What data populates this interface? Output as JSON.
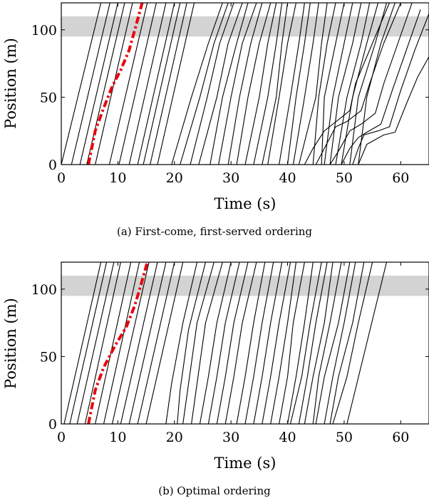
{
  "chart_data": [
    {
      "type": "line",
      "caption": "(a) First-come, first-served ordering",
      "xlabel": "Time (s)",
      "ylabel": "Position (m)",
      "xlim": [
        0,
        65
      ],
      "ylim": [
        0,
        120
      ],
      "xticks": [
        0,
        10,
        20,
        30,
        40,
        50,
        60
      ],
      "yticks": [
        0,
        50,
        100
      ],
      "band": [
        95,
        110
      ],
      "band_color": "#d3d3d3",
      "line_color": "#000000",
      "highlight_color": "#e8000b",
      "highlight": {
        "x": [
          4.8,
          6.0,
          7.5,
          9.0,
          10.5,
          12.0,
          13.0,
          14.3
        ],
        "y": [
          0,
          25,
          42,
          58,
          70,
          85,
          100,
          120
        ]
      },
      "series": [
        {
          "x": [
            0,
            7.0
          ],
          "y": [
            0,
            120
          ]
        },
        {
          "x": [
            1.8,
            8.6
          ],
          "y": [
            0,
            120
          ]
        },
        {
          "x": [
            3.3,
            10.0
          ],
          "y": [
            0,
            120
          ]
        },
        {
          "x": [
            4.5,
            11.2
          ],
          "y": [
            0,
            120
          ]
        },
        {
          "x": [
            6.0,
            12.6
          ],
          "y": [
            0,
            120
          ]
        },
        {
          "x": [
            8.5,
            15.2
          ],
          "y": [
            0,
            120
          ]
        },
        {
          "x": [
            10.2,
            16.8
          ],
          "y": [
            0,
            120
          ]
        },
        {
          "x": [
            12.0,
            18.5
          ],
          "y": [
            0,
            120
          ]
        },
        {
          "x": [
            13.5,
            20.0
          ],
          "y": [
            0,
            120
          ]
        },
        {
          "x": [
            14.5,
            21.0
          ],
          "y": [
            0,
            120
          ]
        },
        {
          "x": [
            15.7,
            22.2
          ],
          "y": [
            0,
            120
          ]
        },
        {
          "x": [
            17.0,
            23.5
          ],
          "y": [
            0,
            120
          ]
        },
        {
          "x": [
            19.5,
            23.0,
            26.0,
            28.5
          ],
          "y": [
            0,
            50,
            90,
            120
          ]
        },
        {
          "x": [
            21.0,
            24.5,
            27.0,
            29.5
          ],
          "y": [
            0,
            50,
            90,
            120
          ]
        },
        {
          "x": [
            22.8,
            25.8,
            28.0,
            30.5
          ],
          "y": [
            0,
            50,
            90,
            120
          ]
        },
        {
          "x": [
            24.3,
            27.5,
            29.5,
            32.0
          ],
          "y": [
            0,
            50,
            90,
            120
          ]
        },
        {
          "x": [
            26.3,
            28.5,
            31.0,
            33.0
          ],
          "y": [
            0,
            50,
            90,
            120
          ]
        },
        {
          "x": [
            27.8,
            30.0,
            32.0,
            34.5
          ],
          "y": [
            0,
            50,
            90,
            120
          ]
        },
        {
          "x": [
            29.5,
            31.5,
            33.5,
            35.5
          ],
          "y": [
            0,
            50,
            90,
            120
          ]
        },
        {
          "x": [
            31.0,
            33.0,
            35.0,
            37.0
          ],
          "y": [
            0,
            50,
            90,
            120
          ]
        },
        {
          "x": [
            32.5,
            35.0,
            36.5,
            38.0
          ],
          "y": [
            0,
            50,
            90,
            120
          ]
        },
        {
          "x": [
            34.0,
            36.5,
            38.0,
            39.0
          ],
          "y": [
            0,
            50,
            90,
            120
          ]
        },
        {
          "x": [
            35.5,
            38.0,
            39.0,
            40.0
          ],
          "y": [
            0,
            50,
            90,
            120
          ]
        },
        {
          "x": [
            36.5,
            38.5,
            40.0,
            41.5
          ],
          "y": [
            0,
            50,
            90,
            120
          ]
        },
        {
          "x": [
            38.5,
            40.5,
            42.0,
            43.0
          ],
          "y": [
            0,
            50,
            90,
            120
          ]
        },
        {
          "x": [
            40.0,
            41.5,
            43.0,
            44.0
          ],
          "y": [
            0,
            50,
            90,
            120
          ]
        },
        {
          "x": [
            41.0,
            43.0,
            44.5,
            45.5
          ],
          "y": [
            0,
            50,
            90,
            120
          ]
        },
        {
          "x": [
            42.0,
            45.0,
            46.0,
            47.0
          ],
          "y": [
            0,
            50,
            90,
            120
          ]
        },
        {
          "x": [
            44.5,
            45.5,
            47.0,
            48.5
          ],
          "y": [
            0,
            50,
            90,
            120
          ]
        },
        {
          "x": [
            46.0,
            46.5,
            48.5,
            50.0
          ],
          "y": [
            0,
            50,
            90,
            120
          ]
        },
        {
          "x": [
            46.5,
            48.0,
            50.0,
            51.5
          ],
          "y": [
            0,
            50,
            90,
            120
          ]
        },
        {
          "x": [
            47.5,
            49.0,
            51.5,
            53.0
          ],
          "y": [
            0,
            50,
            90,
            120
          ]
        },
        {
          "x": [
            48.5,
            50.5,
            53.0,
            54.5
          ],
          "y": [
            0,
            50,
            90,
            120
          ]
        },
        {
          "x": [
            49.5,
            51.5,
            54.0,
            56.0
          ],
          "y": [
            0,
            50,
            90,
            120
          ]
        },
        {
          "x": [
            51.0,
            52.5,
            55.5,
            57.5
          ],
          "y": [
            0,
            50,
            90,
            120
          ]
        },
        {
          "x": [
            52.5,
            54.0,
            56.5,
            59.0
          ],
          "y": [
            0,
            50,
            90,
            120
          ]
        },
        {
          "x": [
            43.0,
            44.5,
            46.5,
            48.0,
            51.0,
            52.0,
            55.0,
            58.0
          ],
          "y": [
            0,
            12,
            25,
            30,
            40,
            60,
            90,
            120
          ]
        },
        {
          "x": [
            45.0,
            46.5,
            48.5,
            50.5,
            53.0,
            54.5,
            57.0,
            60.0
          ],
          "y": [
            0,
            12,
            28,
            32,
            40,
            60,
            90,
            120
          ]
        },
        {
          "x": [
            47.5,
            49.0,
            51.0,
            53.0,
            55.5,
            57.0,
            59.5,
            62.0
          ],
          "y": [
            0,
            10,
            25,
            30,
            38,
            60,
            90,
            120
          ]
        },
        {
          "x": [
            49.5,
            51.0,
            52.5,
            54.0,
            56.5,
            58.5,
            61.0,
            63.5
          ],
          "y": [
            0,
            12,
            20,
            24,
            30,
            55,
            85,
            115
          ]
        },
        {
          "x": [
            51.5,
            52.5,
            53.5,
            56.0,
            58.0,
            60.0,
            62.5,
            65.0
          ],
          "y": [
            0,
            12,
            22,
            25,
            28,
            55,
            85,
            112
          ]
        },
        {
          "x": [
            52.5,
            54.0,
            57.0,
            59.0,
            61.0,
            63.0,
            65.0
          ],
          "y": [
            0,
            15,
            22,
            24,
            45,
            65,
            80
          ]
        }
      ]
    },
    {
      "type": "line",
      "caption": "(b) Optimal ordering",
      "xlabel": "Time (s)",
      "ylabel": "Position (m)",
      "xlim": [
        0,
        65
      ],
      "ylim": [
        0,
        120
      ],
      "xticks": [
        0,
        10,
        20,
        30,
        40,
        50,
        60
      ],
      "yticks": [
        0,
        50,
        100
      ],
      "band": [
        95,
        110
      ],
      "band_color": "#d3d3d3",
      "line_color": "#000000",
      "highlight_color": "#e8000b",
      "highlight": {
        "x": [
          4.8,
          6.0,
          7.5,
          9.5,
          11.5,
          13.0,
          14.0,
          15.2
        ],
        "y": [
          0,
          25,
          42,
          58,
          72,
          88,
          102,
          120
        ]
      },
      "series": [
        {
          "x": [
            0.5,
            7.0
          ],
          "y": [
            0,
            120
          ]
        },
        {
          "x": [
            1.5,
            8.0
          ],
          "y": [
            0,
            120
          ]
        },
        {
          "x": [
            2.8,
            9.3
          ],
          "y": [
            0,
            120
          ]
        },
        {
          "x": [
            4.2,
            10.5
          ],
          "y": [
            0,
            120
          ]
        },
        {
          "x": [
            6.0,
            12.3
          ],
          "y": [
            0,
            120
          ]
        },
        {
          "x": [
            7.5,
            13.8
          ],
          "y": [
            0,
            120
          ]
        },
        {
          "x": [
            9.0,
            15.5
          ],
          "y": [
            0,
            120
          ]
        },
        {
          "x": [
            10.5,
            17.0
          ],
          "y": [
            0,
            120
          ]
        },
        {
          "x": [
            12.0,
            18.5
          ],
          "y": [
            0,
            120
          ]
        },
        {
          "x": [
            13.5,
            20.0
          ],
          "y": [
            0,
            120
          ]
        },
        {
          "x": [
            15.0,
            21.5
          ],
          "y": [
            0,
            120
          ]
        },
        {
          "x": [
            18.5,
            19.5,
            21.5,
            24.0
          ],
          "y": [
            0,
            30,
            75,
            120
          ]
        },
        {
          "x": [
            20.5,
            21.0,
            22.5,
            25.5
          ],
          "y": [
            0,
            25,
            70,
            120
          ]
        },
        {
          "x": [
            21.5,
            22.5,
            24.0,
            27.0
          ],
          "y": [
            0,
            30,
            75,
            120
          ]
        },
        {
          "x": [
            23.0,
            24.0,
            25.5,
            28.5
          ],
          "y": [
            0,
            30,
            75,
            120
          ]
        },
        {
          "x": [
            24.5,
            26.0,
            27.5,
            30.0
          ],
          "y": [
            0,
            35,
            75,
            120
          ]
        },
        {
          "x": [
            26.0,
            27.5,
            29.0,
            31.5
          ],
          "y": [
            0,
            35,
            75,
            120
          ]
        },
        {
          "x": [
            27.5,
            29.0,
            30.5,
            33.0
          ],
          "y": [
            0,
            35,
            75,
            120
          ]
        },
        {
          "x": [
            29.0,
            30.5,
            32.0,
            34.5
          ],
          "y": [
            0,
            35,
            75,
            120
          ]
        },
        {
          "x": [
            31.0,
            32.5,
            34.0,
            36.0
          ],
          "y": [
            0,
            35,
            75,
            120
          ]
        },
        {
          "x": [
            32.5,
            34.0,
            35.5,
            37.5
          ],
          "y": [
            0,
            35,
            75,
            120
          ]
        },
        {
          "x": [
            34.0,
            35.5,
            37.0,
            39.0
          ],
          "y": [
            0,
            35,
            75,
            120
          ]
        },
        {
          "x": [
            35.5,
            37.0,
            38.5,
            40.5
          ],
          "y": [
            0,
            35,
            75,
            120
          ]
        },
        {
          "x": [
            37.0,
            38.5,
            40.0,
            41.5
          ],
          "y": [
            0,
            35,
            75,
            120
          ]
        },
        {
          "x": [
            38.5,
            40.0,
            41.0,
            43.0
          ],
          "y": [
            0,
            35,
            75,
            120
          ]
        },
        {
          "x": [
            40.0,
            41.5,
            43.0,
            44.5
          ],
          "y": [
            0,
            35,
            75,
            120
          ]
        },
        {
          "x": [
            40.5,
            42.5,
            44.0,
            46.0
          ],
          "y": [
            0,
            35,
            75,
            120
          ]
        },
        {
          "x": [
            42.0,
            43.5,
            45.0,
            47.0
          ],
          "y": [
            0,
            35,
            75,
            120
          ]
        },
        {
          "x": [
            43.0,
            44.5,
            46.5,
            48.0
          ],
          "y": [
            0,
            35,
            75,
            120
          ]
        },
        {
          "x": [
            44.5,
            45.5,
            47.5,
            49.5
          ],
          "y": [
            0,
            35,
            75,
            120
          ]
        },
        {
          "x": [
            45.0,
            46.5,
            49.0,
            51.0
          ],
          "y": [
            0,
            35,
            75,
            120
          ]
        },
        {
          "x": [
            46.5,
            48.0,
            50.0,
            52.0
          ],
          "y": [
            0,
            35,
            75,
            120
          ]
        },
        {
          "x": [
            47.5,
            49.0,
            51.5,
            53.5
          ],
          "y": [
            0,
            35,
            75,
            120
          ]
        },
        {
          "x": [
            48.0,
            50.5,
            52.5,
            55.0
          ],
          "y": [
            0,
            35,
            75,
            120
          ]
        },
        {
          "x": [
            50.5,
            57.5
          ],
          "y": [
            0,
            120
          ]
        }
      ]
    }
  ]
}
